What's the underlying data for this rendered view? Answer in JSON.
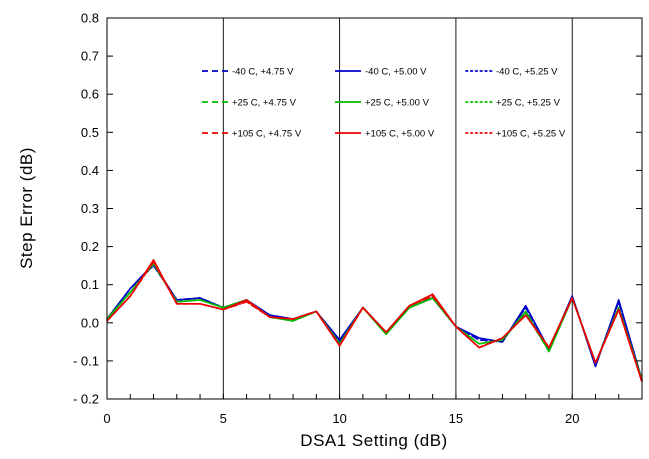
{
  "chart_data": {
    "type": "line",
    "title": "",
    "xlabel": "DSA1 Setting (dB)",
    "ylabel": "Step Error (dB)",
    "xlim": [
      0,
      23
    ],
    "ylim": [
      -0.2,
      0.8
    ],
    "xticks": [
      0,
      5,
      10,
      15,
      20
    ],
    "yticks": [
      -0.2,
      -0.1,
      0.0,
      0.1,
      0.2,
      0.3,
      0.4,
      0.5,
      0.6,
      0.7,
      0.8
    ],
    "ytick_labels": [
      "- 0.2",
      "- 0.1",
      "0.0",
      "0.1",
      "0.2",
      "0.3",
      "0.4",
      "0.5",
      "0.6",
      "0.7",
      "0.8"
    ],
    "grid": "vertical",
    "legend_position": "top",
    "x": [
      0,
      1,
      2,
      3,
      4,
      5,
      6,
      7,
      8,
      9,
      10,
      11,
      12,
      13,
      14,
      15,
      16,
      17,
      18,
      19,
      20,
      21,
      22,
      23
    ],
    "series": [
      {
        "name": "-40 C, +4.75 V",
        "color": "#0000cc",
        "dash": "dashed",
        "values": [
          0.01,
          0.09,
          0.15,
          0.06,
          0.065,
          0.04,
          0.06,
          0.02,
          0.01,
          0.03,
          -0.05,
          0.04,
          -0.025,
          0.04,
          0.065,
          -0.01,
          -0.045,
          -0.05,
          0.04,
          -0.07,
          0.07,
          -0.11,
          0.055,
          -0.15
        ]
      },
      {
        "name": "-40 C, +5.00 V",
        "color": "#0000cc",
        "dash": "solid",
        "values": [
          0.01,
          0.09,
          0.155,
          0.06,
          0.065,
          0.04,
          0.06,
          0.02,
          0.01,
          0.03,
          -0.045,
          0.04,
          -0.025,
          0.04,
          0.065,
          -0.01,
          -0.04,
          -0.05,
          0.045,
          -0.07,
          0.07,
          -0.115,
          0.06,
          -0.15
        ]
      },
      {
        "name": "-40 C, +5.25 V",
        "color": "#0000cc",
        "dash": "dotted",
        "values": [
          0.01,
          0.09,
          0.15,
          0.06,
          0.065,
          0.04,
          0.06,
          0.02,
          0.01,
          0.03,
          -0.05,
          0.04,
          -0.025,
          0.04,
          0.065,
          -0.01,
          -0.045,
          -0.05,
          0.04,
          -0.07,
          0.07,
          -0.11,
          0.055,
          -0.15
        ]
      },
      {
        "name": "+25 C, +4.75 V",
        "color": "#00bb00",
        "dash": "dashed",
        "values": [
          0.01,
          0.08,
          0.155,
          0.055,
          0.06,
          0.04,
          0.06,
          0.015,
          0.005,
          0.03,
          -0.055,
          0.04,
          -0.03,
          0.04,
          0.065,
          -0.01,
          -0.055,
          -0.045,
          0.025,
          -0.075,
          0.065,
          -0.105,
          0.035,
          -0.15
        ]
      },
      {
        "name": "+25 C, +5.00 V",
        "color": "#00bb00",
        "dash": "solid",
        "values": [
          0.01,
          0.08,
          0.155,
          0.055,
          0.06,
          0.04,
          0.06,
          0.015,
          0.005,
          0.03,
          -0.055,
          0.04,
          -0.03,
          0.04,
          0.065,
          -0.01,
          -0.055,
          -0.045,
          0.03,
          -0.075,
          0.065,
          -0.105,
          0.04,
          -0.15
        ]
      },
      {
        "name": "+25 C, +5.25 V",
        "color": "#00bb00",
        "dash": "dotted",
        "values": [
          0.01,
          0.08,
          0.155,
          0.055,
          0.06,
          0.04,
          0.06,
          0.015,
          0.005,
          0.03,
          -0.055,
          0.04,
          -0.03,
          0.04,
          0.065,
          -0.01,
          -0.055,
          -0.045,
          0.025,
          -0.075,
          0.065,
          -0.105,
          0.035,
          -0.15
        ]
      },
      {
        "name": "+105 C, +4.75 V",
        "color": "#ee0000",
        "dash": "dashed",
        "values": [
          0.005,
          0.07,
          0.16,
          0.05,
          0.05,
          0.035,
          0.055,
          0.015,
          0.01,
          0.03,
          -0.06,
          0.04,
          -0.025,
          0.045,
          0.07,
          -0.01,
          -0.065,
          -0.04,
          0.02,
          -0.065,
          0.065,
          -0.105,
          0.035,
          -0.155
        ]
      },
      {
        "name": "+105 C, +5.00 V",
        "color": "#ee0000",
        "dash": "solid",
        "values": [
          0.005,
          0.07,
          0.165,
          0.05,
          0.05,
          0.035,
          0.06,
          0.015,
          0.01,
          0.03,
          -0.06,
          0.04,
          -0.025,
          0.045,
          0.075,
          -0.01,
          -0.065,
          -0.04,
          0.02,
          -0.065,
          0.065,
          -0.105,
          0.035,
          -0.155
        ]
      },
      {
        "name": "+105 C, +5.25 V",
        "color": "#ee0000",
        "dash": "dotted",
        "values": [
          0.005,
          0.07,
          0.16,
          0.05,
          0.05,
          0.035,
          0.055,
          0.015,
          0.01,
          0.03,
          -0.06,
          0.04,
          -0.025,
          0.045,
          0.07,
          -0.01,
          -0.065,
          -0.04,
          0.02,
          -0.065,
          0.065,
          -0.105,
          0.035,
          -0.155
        ]
      }
    ]
  }
}
